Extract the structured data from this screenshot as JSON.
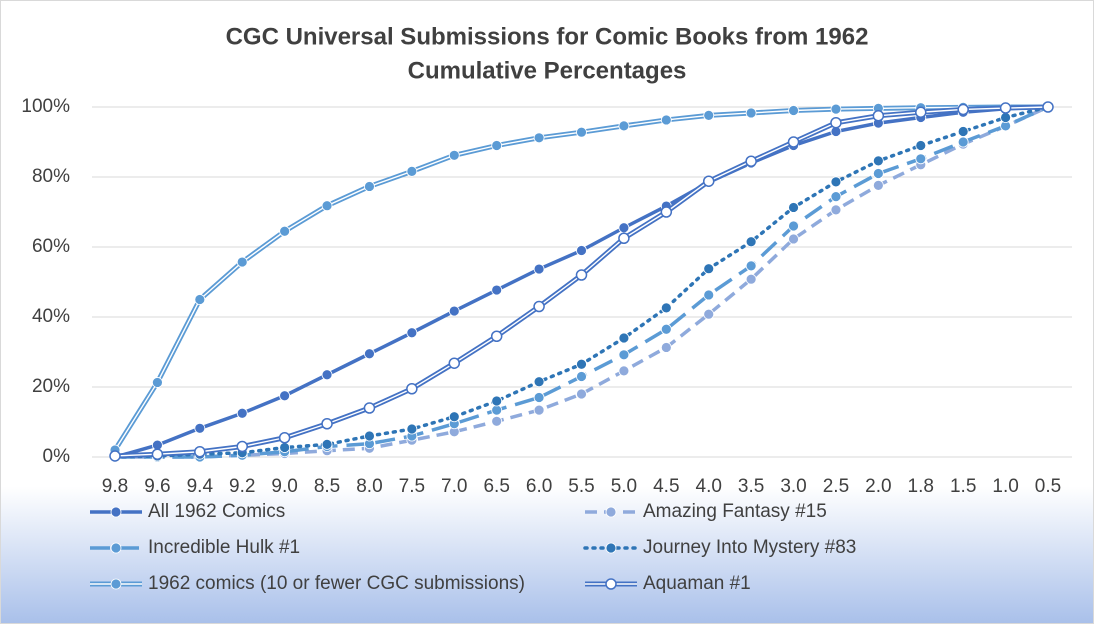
{
  "chart_data": {
    "type": "line",
    "title": "CGC Universal Submissions for Comic Books from 1962",
    "subtitle": "Cumulative Percentages",
    "categories": [
      "9.8",
      "9.6",
      "9.4",
      "9.2",
      "9.0",
      "8.5",
      "8.0",
      "7.5",
      "7.0",
      "6.5",
      "6.0",
      "5.5",
      "5.0",
      "4.5",
      "4.0",
      "3.5",
      "3.0",
      "2.5",
      "2.0",
      "1.8",
      "1.5",
      "1.0",
      "0.5"
    ],
    "ylim": [
      0,
      100
    ],
    "yticks": [
      {
        "value": 0,
        "label": "0%"
      },
      {
        "value": 20,
        "label": "20%"
      },
      {
        "value": 40,
        "label": "40%"
      },
      {
        "value": 60,
        "label": "60%"
      },
      {
        "value": 80,
        "label": "80%"
      },
      {
        "value": 100,
        "label": "100%"
      }
    ],
    "grid": true,
    "legend": "bottom",
    "series": [
      {
        "name": "All 1962 Comics",
        "color": "#4472c4",
        "style": "solid",
        "values": [
          0,
          3.4,
          8.2,
          12.5,
          17.5,
          23.5,
          29.5,
          35.5,
          41.7,
          47.7,
          53.7,
          59,
          65.5,
          71.7,
          78.5,
          84,
          89,
          93,
          95.4,
          97,
          98.5,
          99.5,
          100
        ]
      },
      {
        "name": "Amazing Fantasy #15",
        "color": "#8faadc",
        "style": "dash",
        "values": [
          0,
          0,
          0,
          0.5,
          1,
          1.8,
          2.5,
          4.8,
          7.2,
          10.2,
          13.4,
          18,
          24.6,
          31.3,
          40.8,
          50.8,
          62.3,
          70.6,
          77.6,
          83.5,
          89.4,
          94.5,
          100
        ]
      },
      {
        "name": "Incredible Hulk #1",
        "color": "#5b9bd5",
        "style": "longdash",
        "values": [
          0,
          0,
          0,
          0.5,
          1.5,
          3,
          3.8,
          6,
          9.5,
          13.4,
          17,
          23,
          29.2,
          36.5,
          46.3,
          54.6,
          66,
          74.4,
          81,
          85.2,
          90,
          94.6,
          100
        ]
      },
      {
        "name": "Journey Into Mystery #83",
        "color": "#2e75b6",
        "style": "dot",
        "values": [
          0,
          0.3,
          0.8,
          1.2,
          2.7,
          3.6,
          6,
          8,
          11.5,
          16,
          21.5,
          26.5,
          34,
          42.6,
          53.8,
          61.5,
          71.3,
          78.6,
          84.6,
          89,
          93,
          97,
          100
        ]
      },
      {
        "name": "1962 comics (10 or fewer CGC submissions)",
        "color": "#5b9bd5",
        "style": "double",
        "values": [
          2,
          21.3,
          45,
          55.7,
          64.5,
          71.8,
          77.3,
          81.6,
          86.2,
          89,
          91.2,
          92.8,
          94.6,
          96.3,
          97.6,
          98.3,
          99,
          99.4,
          99.6,
          99.8,
          99.9,
          100,
          100
        ]
      },
      {
        "name": "Aquaman #1",
        "color": "#4472c4",
        "style": "double",
        "marker_fill": "#ffffff",
        "values": [
          0.3,
          0.8,
          1.5,
          3,
          5.5,
          9.5,
          14,
          19.5,
          26.8,
          34.5,
          43,
          52,
          62.5,
          70,
          78.8,
          84.5,
          90,
          95.5,
          97.5,
          98.5,
          99.3,
          99.7,
          100
        ]
      }
    ]
  }
}
